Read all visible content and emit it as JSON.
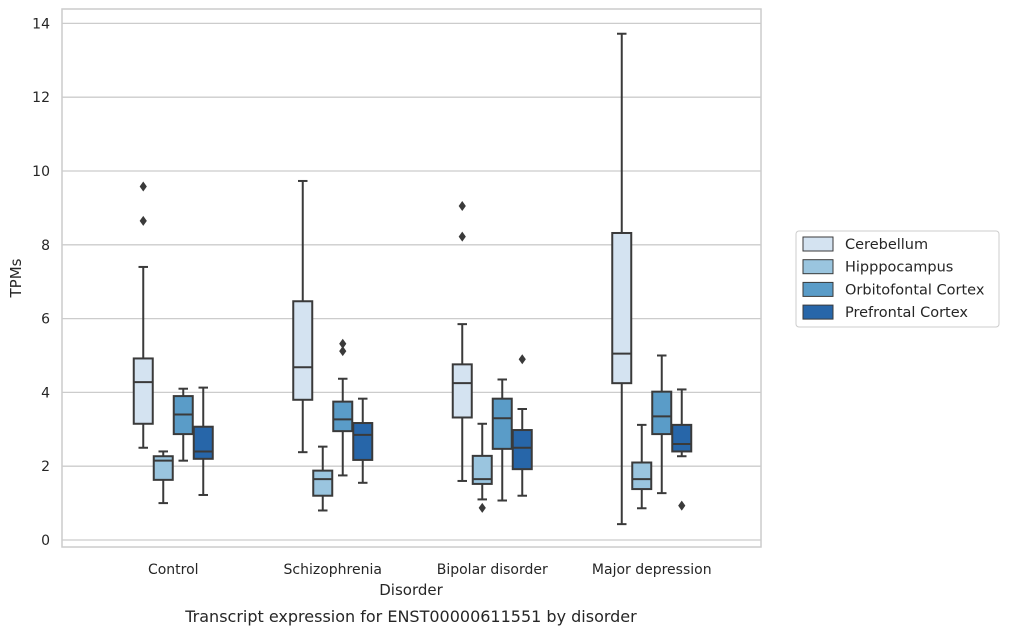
{
  "chart_data": {
    "type": "box",
    "xlabel": "Disorder",
    "ylabel": "TPMs",
    "caption": "Transcript expression for ENST00000611551 by disorder",
    "ylim": [
      -0.2,
      14.4
    ],
    "yticks": [
      0,
      2,
      4,
      6,
      8,
      10,
      12,
      14
    ],
    "grid": "horizontal",
    "legend_position": "right",
    "categories": [
      "Control",
      "Schizophrenia",
      "Bipolar disorder",
      "Major depression"
    ],
    "series": [
      {
        "name": "Cerebellum",
        "color": "#d4e3f1",
        "boxes": [
          {
            "whislo": 2.5,
            "q1": 3.15,
            "med": 4.28,
            "q3": 4.92,
            "whishi": 7.4,
            "fliers": [
              8.65,
              9.58
            ]
          },
          {
            "whislo": 2.38,
            "q1": 3.8,
            "med": 4.68,
            "q3": 6.47,
            "whishi": 9.73,
            "fliers": []
          },
          {
            "whislo": 1.6,
            "q1": 3.32,
            "med": 4.25,
            "q3": 4.76,
            "whishi": 5.85,
            "fliers": [
              8.22,
              9.05
            ]
          },
          {
            "whislo": 0.43,
            "q1": 4.25,
            "med": 5.05,
            "q3": 8.32,
            "whishi": 13.72,
            "fliers": []
          }
        ]
      },
      {
        "name": "Hipppocampus",
        "color": "#9ac5df",
        "boxes": [
          {
            "whislo": 1.0,
            "q1": 1.63,
            "med": 2.15,
            "q3": 2.27,
            "whishi": 2.4,
            "fliers": []
          },
          {
            "whislo": 0.8,
            "q1": 1.2,
            "med": 1.65,
            "q3": 1.88,
            "whishi": 2.53,
            "fliers": []
          },
          {
            "whislo": 1.1,
            "q1": 1.52,
            "med": 1.65,
            "q3": 2.28,
            "whishi": 3.15,
            "fliers": [
              0.87
            ]
          },
          {
            "whislo": 0.86,
            "q1": 1.38,
            "med": 1.65,
            "q3": 2.1,
            "whishi": 3.12,
            "fliers": []
          }
        ]
      },
      {
        "name": "Orbitofontal Cortex",
        "color": "#5a9cc8",
        "boxes": [
          {
            "whislo": 2.15,
            "q1": 2.87,
            "med": 3.4,
            "q3": 3.9,
            "whishi": 4.1,
            "fliers": []
          },
          {
            "whislo": 1.75,
            "q1": 2.95,
            "med": 3.27,
            "q3": 3.75,
            "whishi": 4.37,
            "fliers": [
              5.12,
              5.32
            ]
          },
          {
            "whislo": 1.07,
            "q1": 2.47,
            "med": 3.3,
            "q3": 3.83,
            "whishi": 4.35,
            "fliers": []
          },
          {
            "whislo": 1.27,
            "q1": 2.87,
            "med": 3.35,
            "q3": 4.02,
            "whishi": 5.0,
            "fliers": []
          }
        ]
      },
      {
        "name": "Prefrontal Cortex",
        "color": "#2766a9",
        "boxes": [
          {
            "whislo": 1.22,
            "q1": 2.2,
            "med": 2.4,
            "q3": 3.07,
            "whishi": 4.13,
            "fliers": []
          },
          {
            "whislo": 1.55,
            "q1": 2.17,
            "med": 2.85,
            "q3": 3.17,
            "whishi": 3.83,
            "fliers": []
          },
          {
            "whislo": 1.2,
            "q1": 1.92,
            "med": 2.5,
            "q3": 2.98,
            "whishi": 3.55,
            "fliers": [
              4.9
            ]
          },
          {
            "whislo": 2.27,
            "q1": 2.4,
            "med": 2.6,
            "q3": 3.12,
            "whishi": 4.08,
            "fliers": [
              0.93
            ]
          }
        ]
      }
    ]
  }
}
